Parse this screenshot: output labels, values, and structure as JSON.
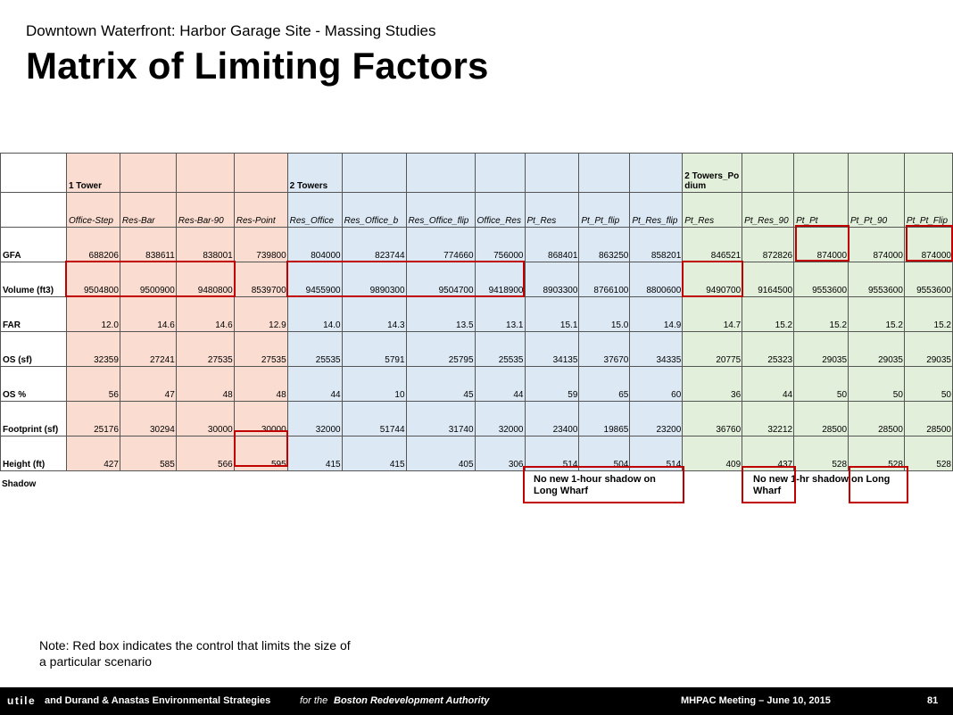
{
  "header": {
    "subtitle": "Downtown Waterfront: Harbor Garage Site - Massing Studies",
    "title": "Matrix of Limiting Factors"
  },
  "table": {
    "groups": {
      "g1": "1 Tower",
      "g2": "2 Towers",
      "g3": "2 Towers_Podium"
    },
    "subheaders": [
      "Office-Step",
      "Res-Bar",
      "Res-Bar-90",
      "Res-Point",
      "Res_Office",
      "Res_Office_b",
      "Res_Office_flip",
      "Office_Res",
      "Pt_Res",
      "Pt_Pt_flip",
      "Pt_Res_flip",
      "Pt_Res",
      "Pt_Res_90",
      "Pt_Pt",
      "Pt_Pt_90",
      "Pt_Pt_Flip"
    ],
    "rows": [
      {
        "label": "GFA",
        "values": [
          "688206",
          "838611",
          "838001",
          "739800",
          "804000",
          "823744",
          "774660",
          "756000",
          "868401",
          "863250",
          "858201",
          "846521",
          "872826",
          "874000",
          "874000",
          "874000"
        ]
      },
      {
        "label": "Volume (ft3)",
        "values": [
          "9504800",
          "9500900",
          "9480800",
          "8539700",
          "9455900",
          "9890300",
          "9504700",
          "9418900",
          "8903300",
          "8766100",
          "8800600",
          "9490700",
          "9164500",
          "9553600",
          "9553600",
          "9553600"
        ]
      },
      {
        "label": "FAR",
        "values": [
          "12.0",
          "14.6",
          "14.6",
          "12.9",
          "14.0",
          "14.3",
          "13.5",
          "13.1",
          "15.1",
          "15.0",
          "14.9",
          "14.7",
          "15.2",
          "15.2",
          "15.2",
          "15.2"
        ]
      },
      {
        "label": "OS (sf)",
        "values": [
          "32359",
          "27241",
          "27535",
          "27535",
          "25535",
          "5791",
          "25795",
          "25535",
          "34135",
          "37670",
          "34335",
          "20775",
          "25323",
          "29035",
          "29035",
          "29035"
        ]
      },
      {
        "label": "OS %",
        "values": [
          "56",
          "47",
          "48",
          "48",
          "44",
          "10",
          "45",
          "44",
          "59",
          "65",
          "60",
          "36",
          "44",
          "50",
          "50",
          "50"
        ]
      },
      {
        "label": "Footprint (sf)",
        "values": [
          "25176",
          "30294",
          "30000",
          "30000",
          "32000",
          "51744",
          "31740",
          "32000",
          "23400",
          "19865",
          "23200",
          "36760",
          "32212",
          "28500",
          "28500",
          "28500"
        ]
      },
      {
        "label": "Height (ft)",
        "values": [
          "427",
          "585",
          "566",
          "595",
          "415",
          "415",
          "405",
          "306",
          "514",
          "504",
          "514",
          "409",
          "437",
          "528",
          "528",
          "528"
        ]
      }
    ]
  },
  "shadow": {
    "label": "Shadow",
    "note_a": "No new 1-hour shadow on Long Wharf",
    "note_b": "No new 1-hr shadow on Long Wharf"
  },
  "note": "Note: Red box indicates the control that limits the size of a particular scenario",
  "footer": {
    "logo": "utile",
    "partners": "and Durand & Anastas Environmental Strategies",
    "for_text": "for the",
    "client": "Boston Redevelopment Authority",
    "meeting": "MHPAC Meeting  – June 10, 2015",
    "page": "81"
  },
  "colors": {
    "one_tower": "#fbdcd0",
    "two_towers": "#dce9f5",
    "podium": "#e2efda",
    "limit_box": "#c00000"
  }
}
